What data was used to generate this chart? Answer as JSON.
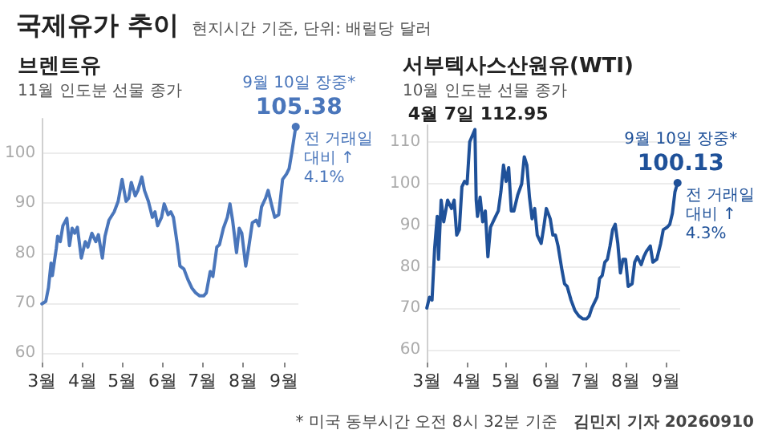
{
  "chart_data": [
    {
      "type": "line",
      "title": "브렌트유",
      "subtitle": "11월 인도분 선물 종가",
      "color": "#4a76bb",
      "line_style": "solid",
      "grid": "y",
      "annotations": [
        "국제유가 추이",
        "현지시간 기준, 단위: 배럴당 달러",
        {
          "text": "9월 10일 장중*",
          "x": "2026-09-10",
          "y": 105.38
        },
        {
          "text": "105.38",
          "x": "2026-09-10",
          "y": 105.38
        },
        {
          "text": "전 거래일 대비 ↑4.1%",
          "x": "2026-09-10",
          "y": 105.38
        }
      ],
      "xlim": [
        "2026-03-01",
        "2026-09-12"
      ],
      "ylim": [
        58,
        107
      ],
      "yticks": [
        60,
        70,
        80,
        90,
        100
      ],
      "xticks": [
        {
          "value": "2026-03-01",
          "label": "3월"
        },
        {
          "value": "2026-04-01",
          "label": "4월"
        },
        {
          "value": "2026-05-01",
          "label": "5월"
        },
        {
          "value": "2026-06-01",
          "label": "6월"
        },
        {
          "value": "2026-07-01",
          "label": "7월"
        },
        {
          "value": "2026-08-01",
          "label": "8월"
        },
        {
          "value": "2026-09-01",
          "label": "9월"
        }
      ],
      "x": [
        "2026-03-01",
        "2026-03-04",
        "2026-03-06",
        "2026-03-08",
        "2026-03-09",
        "2026-03-12",
        "2026-03-13",
        "2026-03-15",
        "2026-03-17",
        "2026-03-20",
        "2026-03-22",
        "2026-03-24",
        "2026-03-26",
        "2026-03-28",
        "2026-03-31",
        "2026-04-03",
        "2026-04-05",
        "2026-04-08",
        "2026-04-11",
        "2026-04-13",
        "2026-04-16",
        "2026-04-18",
        "2026-04-21",
        "2026-04-25",
        "2026-04-28",
        "2026-05-01",
        "2026-05-04",
        "2026-05-06",
        "2026-05-08",
        "2026-05-11",
        "2026-05-13",
        "2026-05-16",
        "2026-05-18",
        "2026-05-21",
        "2026-05-24",
        "2026-05-26",
        "2026-05-28",
        "2026-05-31",
        "2026-06-02",
        "2026-06-05",
        "2026-06-07",
        "2026-06-09",
        "2026-06-12",
        "2026-06-14",
        "2026-06-17",
        "2026-06-20",
        "2026-06-23",
        "2026-06-26",
        "2026-06-29",
        "2026-07-02",
        "2026-07-04",
        "2026-07-07",
        "2026-07-09",
        "2026-07-12",
        "2026-07-14",
        "2026-07-17",
        "2026-07-20",
        "2026-07-22",
        "2026-07-24",
        "2026-07-27",
        "2026-07-29",
        "2026-07-31",
        "2026-08-03",
        "2026-08-05",
        "2026-08-08",
        "2026-08-11",
        "2026-08-13",
        "2026-08-15",
        "2026-08-18",
        "2026-08-20",
        "2026-08-23",
        "2026-08-25",
        "2026-08-28",
        "2026-08-31",
        "2026-09-03",
        "2026-09-05",
        "2026-09-07",
        "2026-09-10"
      ],
      "values": [
        69.8,
        70.3,
        73,
        78,
        75.5,
        81,
        83.4,
        82.3,
        85.5,
        87,
        81.5,
        85,
        84,
        85.2,
        79,
        82.3,
        81.2,
        84,
        82.3,
        83.7,
        79,
        83.4,
        86.6,
        88.3,
        90.4,
        94.8,
        90.4,
        91,
        94.2,
        91.5,
        92.6,
        95.3,
        92.6,
        90.4,
        87.2,
        88.3,
        85.5,
        87.2,
        89.9,
        87.7,
        88.3,
        87.2,
        81.7,
        77.4,
        76.8,
        74.7,
        73,
        72,
        71.4,
        71.4,
        72,
        76.3,
        75.3,
        81.2,
        81.7,
        85,
        87.2,
        89.9,
        86.6,
        80.1,
        85,
        84,
        77.4,
        80.7,
        86.1,
        86.6,
        85.5,
        89.3,
        91,
        92.6,
        89.3,
        87.2,
        87.7,
        94.8,
        95.9,
        97,
        100.2,
        105.38
      ]
    },
    {
      "type": "line",
      "title": "서부텍사스산원유(WTI)",
      "subtitle": "10월 인도분 선물 종가",
      "color": "#1f5199",
      "line_style": "solid",
      "grid": "y",
      "annotations": [
        "* 미국 동부시간 오전 8시 32분 기준",
        "김민지 기자 20260910",
        {
          "text": "4월 7일 112.95",
          "x": "2026-04-07",
          "y": 112.95
        },
        {
          "text": "9월 10일 장중*",
          "x": "2026-09-10",
          "y": 100.13
        },
        {
          "text": "100.13",
          "x": "2026-09-10",
          "y": 100.13
        },
        {
          "text": "전 거래일 대비 ↑4.3%",
          "x": "2026-09-10",
          "y": 100.13
        }
      ],
      "xlim": [
        "2026-03-01",
        "2026-09-12"
      ],
      "ylim": [
        57,
        114
      ],
      "yticks": [
        60,
        70,
        80,
        90,
        100,
        110
      ],
      "xticks": [
        {
          "value": "2026-03-01",
          "label": "3월"
        },
        {
          "value": "2026-04-01",
          "label": "4월"
        },
        {
          "value": "2026-05-01",
          "label": "5월"
        },
        {
          "value": "2026-06-01",
          "label": "6월"
        },
        {
          "value": "2026-07-01",
          "label": "7월"
        },
        {
          "value": "2026-08-01",
          "label": "8월"
        },
        {
          "value": "2026-09-01",
          "label": "9월"
        }
      ],
      "x": [
        "2026-03-01",
        "2026-03-03",
        "2026-03-05",
        "2026-03-07",
        "2026-03-09",
        "2026-03-10",
        "2026-03-12",
        "2026-03-14",
        "2026-03-17",
        "2026-03-20",
        "2026-03-22",
        "2026-03-24",
        "2026-03-26",
        "2026-03-28",
        "2026-03-30",
        "2026-04-01",
        "2026-04-03",
        "2026-04-07",
        "2026-04-08",
        "2026-04-09",
        "2026-04-11",
        "2026-04-13",
        "2026-04-15",
        "2026-04-17",
        "2026-04-19",
        "2026-04-22",
        "2026-04-25",
        "2026-04-27",
        "2026-04-29",
        "2026-05-01",
        "2026-05-03",
        "2026-05-05",
        "2026-05-07",
        "2026-05-10",
        "2026-05-13",
        "2026-05-15",
        "2026-05-17",
        "2026-05-19",
        "2026-05-21",
        "2026-05-23",
        "2026-05-25",
        "2026-05-28",
        "2026-05-30",
        "2026-06-01",
        "2026-06-04",
        "2026-06-06",
        "2026-06-08",
        "2026-06-10",
        "2026-06-13",
        "2026-06-15",
        "2026-06-17",
        "2026-06-20",
        "2026-06-23",
        "2026-06-26",
        "2026-06-29",
        "2026-07-02",
        "2026-07-04",
        "2026-07-06",
        "2026-07-08",
        "2026-07-10",
        "2026-07-12",
        "2026-07-14",
        "2026-07-16",
        "2026-07-18",
        "2026-07-20",
        "2026-07-22",
        "2026-07-24",
        "2026-07-26",
        "2026-07-28",
        "2026-07-30",
        "2026-08-01",
        "2026-08-03",
        "2026-08-06",
        "2026-08-08",
        "2026-08-10",
        "2026-08-13",
        "2026-08-15",
        "2026-08-17",
        "2026-08-20",
        "2026-08-22",
        "2026-08-25",
        "2026-08-28",
        "2026-08-30",
        "2026-09-02",
        "2026-09-04",
        "2026-09-06",
        "2026-09-08",
        "2026-09-10"
      ],
      "values": [
        70.1,
        72.7,
        72,
        84.4,
        92.1,
        81.8,
        96,
        90.8,
        96,
        94,
        96,
        87.6,
        88.9,
        99.2,
        100.5,
        99.9,
        110,
        112.95,
        96,
        92.1,
        96.7,
        90.8,
        93.4,
        82.4,
        89.5,
        91.5,
        93.4,
        98,
        104.4,
        100.5,
        103.8,
        93.4,
        93.4,
        97.3,
        99.9,
        106.4,
        104.4,
        96.7,
        91.5,
        94,
        87.6,
        85.6,
        89.5,
        94,
        91.5,
        87.6,
        87.6,
        85,
        79.2,
        75.9,
        75.3,
        72,
        69.5,
        68.2,
        67.5,
        67.5,
        68.2,
        70.1,
        71.4,
        72.7,
        77.2,
        77.9,
        81.1,
        81.8,
        85,
        88.9,
        90.2,
        85.6,
        78.5,
        81.8,
        81.8,
        75.3,
        75.9,
        81.1,
        82.4,
        80.5,
        82.4,
        83.7,
        85,
        81.1,
        81.8,
        85.6,
        88.9,
        89.5,
        90.2,
        92.8,
        98,
        100.13
      ]
    }
  ]
}
